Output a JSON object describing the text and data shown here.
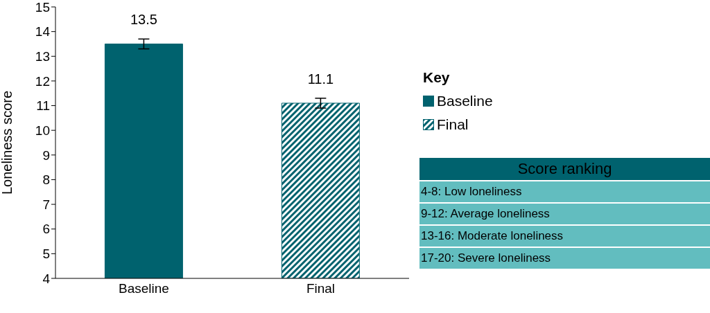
{
  "chart_data": [
    {
      "type": "bar",
      "categories": [
        "Baseline",
        "Final"
      ],
      "ylabel": "Loneliness score",
      "legend_title": "Key",
      "legend": "right",
      "data_labels": true,
      "ylim": [
        4,
        15
      ],
      "yticks": [
        4,
        5,
        6,
        7,
        8,
        9,
        10,
        11,
        12,
        13,
        14,
        15
      ],
      "series": [
        {
          "name": "Baseline",
          "color": "#00626e",
          "values": [
            13.5,
            null
          ],
          "errors": [
            0.2,
            null
          ]
        },
        {
          "name": "Final",
          "color": "#00626e",
          "values": [
            null,
            11.1
          ],
          "errors": [
            null,
            0.2
          ]
        }
      ]
    },
    {
      "type": "other",
      "title": "Score ranking",
      "annotations": [
        "4-8: Low loneliness",
        "9-12: Average loneliness",
        "13-16: Moderate loneliness",
        "17-20: Severe loneliness"
      ]
    }
  ]
}
